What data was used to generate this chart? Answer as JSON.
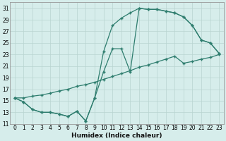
{
  "xlabel": "Humidex (Indice chaleur)",
  "background_color": "#d6edeb",
  "grid_color": "#b8d4d0",
  "line_color": "#2e7d6e",
  "xlim": [
    -0.5,
    23.5
  ],
  "ylim": [
    11,
    32
  ],
  "xticks": [
    0,
    1,
    2,
    3,
    4,
    5,
    6,
    7,
    8,
    9,
    10,
    11,
    12,
    13,
    14,
    15,
    16,
    17,
    18,
    19,
    20,
    21,
    22,
    23
  ],
  "yticks": [
    11,
    13,
    15,
    17,
    19,
    21,
    23,
    25,
    27,
    29,
    31
  ],
  "line1_x": [
    0,
    1,
    2,
    3,
    4,
    5,
    6,
    7,
    8,
    9,
    10,
    11,
    12,
    13,
    14,
    15,
    16,
    17,
    18,
    19,
    20,
    21,
    22,
    23
  ],
  "line1_y": [
    15.5,
    14.8,
    13.5,
    13.0,
    13.0,
    12.7,
    12.3,
    13.2,
    11.5,
    15.5,
    23.5,
    28.0,
    29.3,
    30.2,
    31.0,
    30.8,
    30.8,
    30.5,
    30.2,
    29.5,
    28.0,
    25.5,
    25.0,
    23.2
  ],
  "line2_x": [
    0,
    1,
    2,
    3,
    4,
    5,
    6,
    7,
    8,
    9,
    10,
    11,
    12,
    13,
    14,
    15,
    16,
    17,
    18,
    19,
    20,
    21,
    22,
    23
  ],
  "line2_y": [
    15.5,
    14.8,
    13.5,
    13.0,
    13.0,
    12.7,
    12.3,
    13.2,
    11.5,
    15.5,
    20.0,
    24.0,
    24.0,
    20.0,
    31.0,
    30.8,
    30.8,
    30.5,
    30.2,
    29.5,
    28.0,
    25.5,
    25.0,
    23.2
  ],
  "line3_x": [
    0,
    1,
    2,
    3,
    4,
    5,
    6,
    7,
    8,
    9,
    10,
    11,
    12,
    13,
    14,
    15,
    16,
    17,
    18,
    19,
    20,
    21,
    22,
    23
  ],
  "line3_y": [
    15.5,
    15.5,
    15.8,
    16.0,
    16.3,
    16.7,
    17.0,
    17.5,
    17.8,
    18.2,
    18.7,
    19.2,
    19.7,
    20.2,
    20.8,
    21.2,
    21.7,
    22.2,
    22.7,
    21.5,
    21.8,
    22.2,
    22.5,
    23.0
  ]
}
